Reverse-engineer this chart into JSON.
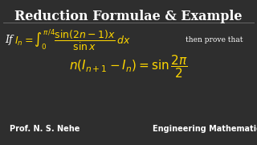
{
  "title": "Reduction Formulae & Example",
  "title_color": "#FFFFFF",
  "title_fontsize": 11.5,
  "bg_color": "#2e2e2e",
  "formula_color": "#FFD700",
  "text_color": "#FFFFFF",
  "footer_left": "Prof. N. S. Nehe",
  "footer_right": "Engineering Mathematics",
  "footer_color": "#FFFFFF",
  "footer_fontsize": 7.0
}
